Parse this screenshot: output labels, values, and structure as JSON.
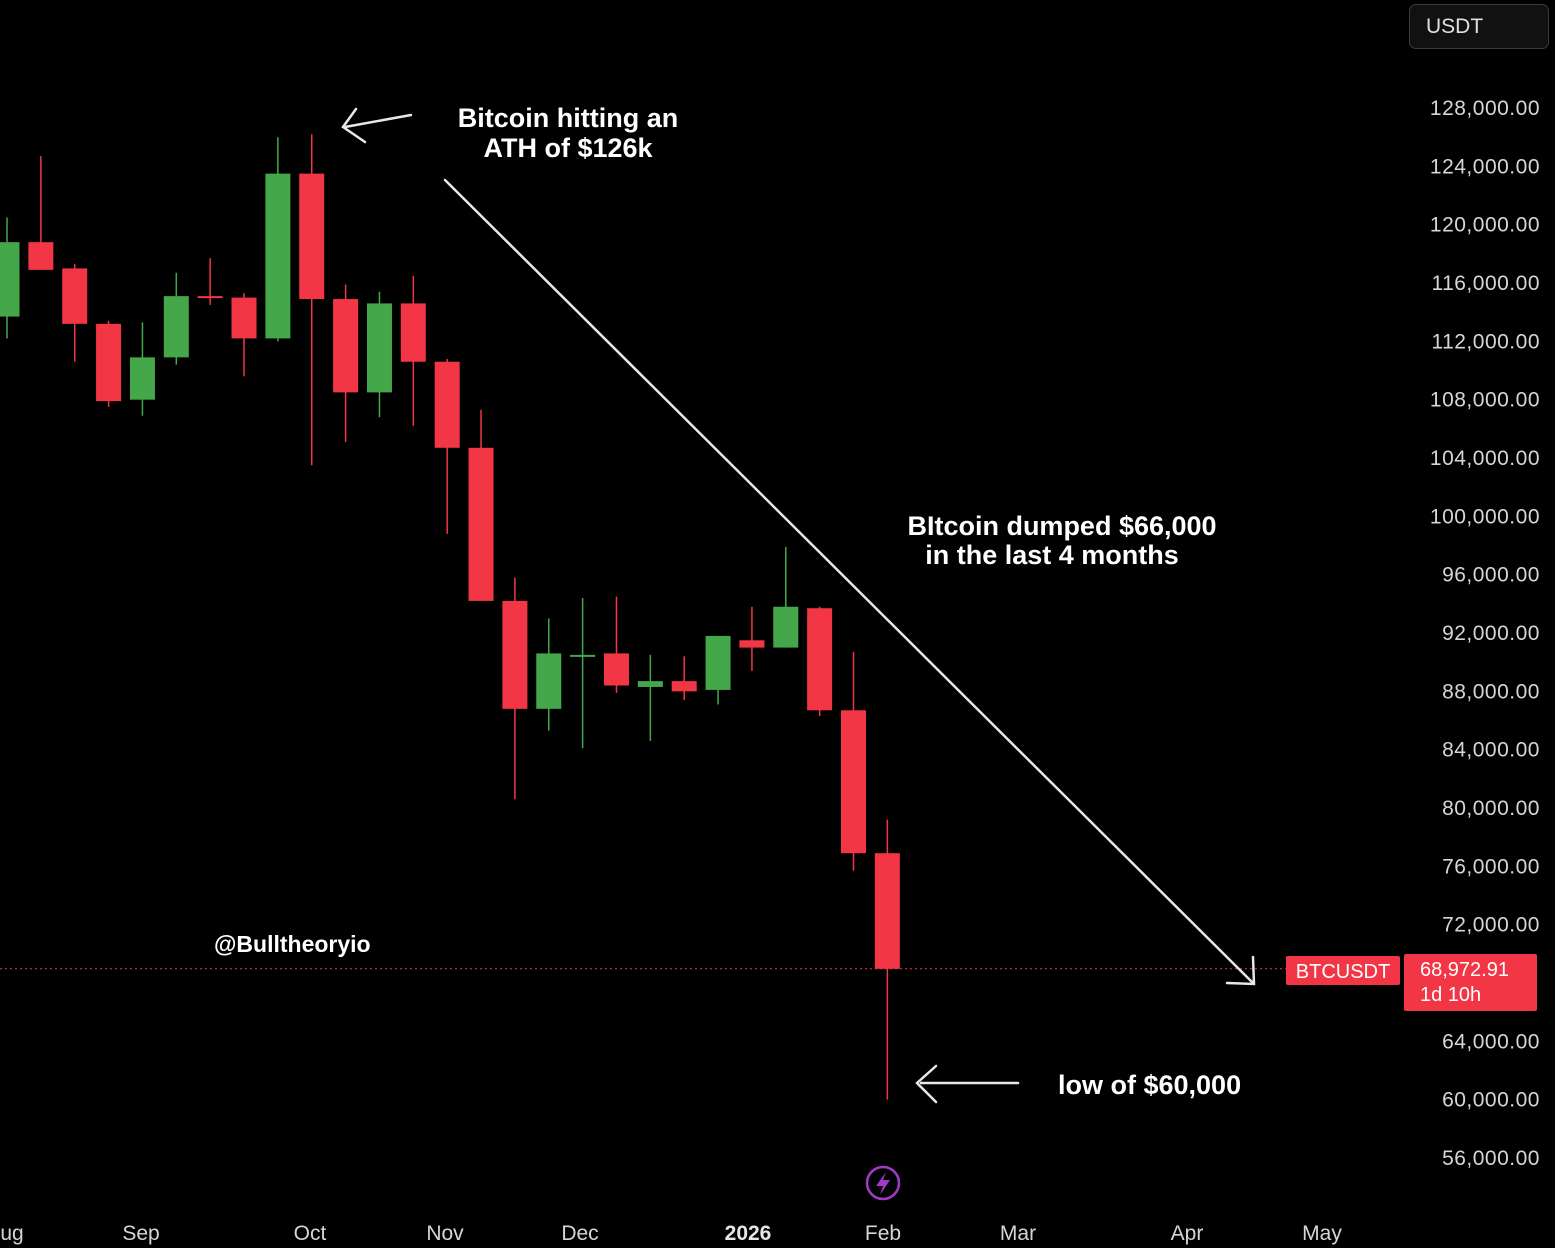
{
  "currency_button": {
    "label": "USDT"
  },
  "chart_data": {
    "type": "candlestick",
    "symbol": "BTCUSDT",
    "interval": "weekly",
    "y_ticks": [
      "128,000.00",
      "124,000.00",
      "120,000.00",
      "116,000.00",
      "112,000.00",
      "108,000.00",
      "104,000.00",
      "100,000.00",
      "96,000.00",
      "92,000.00",
      "88,000.00",
      "84,000.00",
      "80,000.00",
      "76,000.00",
      "72,000.00",
      "64,000.00",
      "60,000.00",
      "56,000.00"
    ],
    "y_tick_values": [
      128000,
      124000,
      120000,
      116000,
      112000,
      108000,
      104000,
      100000,
      96000,
      92000,
      88000,
      84000,
      80000,
      76000,
      72000,
      64000,
      60000,
      56000
    ],
    "ylim": [
      54000,
      133000
    ],
    "x_labels": [
      {
        "label": "ug",
        "bold": false
      },
      {
        "label": "Sep",
        "bold": false
      },
      {
        "label": "Oct",
        "bold": false
      },
      {
        "label": "Nov",
        "bold": false
      },
      {
        "label": "Dec",
        "bold": false
      },
      {
        "label": "2026",
        "bold": true
      },
      {
        "label": "Feb",
        "bold": false
      },
      {
        "label": "Mar",
        "bold": false
      },
      {
        "label": "Apr",
        "bold": false
      },
      {
        "label": "May",
        "bold": false
      }
    ],
    "candles": [
      {
        "o": 113700,
        "h": 120500,
        "l": 112200,
        "c": 118800
      },
      {
        "o": 118800,
        "h": 124700,
        "l": 117000,
        "c": 116900
      },
      {
        "o": 117000,
        "h": 117300,
        "l": 110600,
        "c": 113200
      },
      {
        "o": 113200,
        "h": 113400,
        "l": 107500,
        "c": 107900
      },
      {
        "o": 108000,
        "h": 113300,
        "l": 106900,
        "c": 110900
      },
      {
        "o": 110900,
        "h": 116700,
        "l": 110400,
        "c": 115100
      },
      {
        "o": 115100,
        "h": 117700,
        "l": 114500,
        "c": 115000
      },
      {
        "o": 115000,
        "h": 115300,
        "l": 109600,
        "c": 112200
      },
      {
        "o": 112200,
        "h": 126000,
        "l": 112000,
        "c": 123500
      },
      {
        "o": 123500,
        "h": 126200,
        "l": 103500,
        "c": 114900
      },
      {
        "o": 114900,
        "h": 115900,
        "l": 105100,
        "c": 108500
      },
      {
        "o": 108500,
        "h": 115400,
        "l": 106800,
        "c": 114600
      },
      {
        "o": 114600,
        "h": 116500,
        "l": 106200,
        "c": 110600
      },
      {
        "o": 110600,
        "h": 110800,
        "l": 98800,
        "c": 104700
      },
      {
        "o": 104700,
        "h": 107300,
        "l": 94200,
        "c": 94200
      },
      {
        "o": 94200,
        "h": 95800,
        "l": 80600,
        "c": 86800
      },
      {
        "o": 86800,
        "h": 93000,
        "l": 85300,
        "c": 90600
      },
      {
        "o": 90400,
        "h": 94400,
        "l": 84100,
        "c": 90500
      },
      {
        "o": 90600,
        "h": 94500,
        "l": 87900,
        "c": 88400
      },
      {
        "o": 88300,
        "h": 90500,
        "l": 84600,
        "c": 88700
      },
      {
        "o": 88700,
        "h": 90400,
        "l": 87400,
        "c": 88000
      },
      {
        "o": 88100,
        "h": 91800,
        "l": 87100,
        "c": 91800
      },
      {
        "o": 91500,
        "h": 93800,
        "l": 89400,
        "c": 91000
      },
      {
        "o": 91000,
        "h": 97900,
        "l": 91000,
        "c": 93800
      },
      {
        "o": 93700,
        "h": 93800,
        "l": 86300,
        "c": 86700
      },
      {
        "o": 86700,
        "h": 90700,
        "l": 75700,
        "c": 76900
      },
      {
        "o": 76900,
        "h": 79200,
        "l": 60000,
        "c": 68972.91
      }
    ],
    "current_price": {
      "symbol_label": "BTCUSDT",
      "price": "68,972.91",
      "countdown": "1d 10h",
      "value": 68972.91
    },
    "annotations": {
      "ath_line1": "Bitcoin hitting an",
      "ath_line2": "ATH of $126k",
      "dump_line1": "BItcoin dumped $66,000",
      "dump_line2": "in the last 4 months",
      "low": "low of $60,000",
      "watermark": "@Bulltheoryio"
    },
    "colors": {
      "up": "#44a84a",
      "down": "#f23645",
      "background": "#000000",
      "badge": "#f23645"
    }
  }
}
